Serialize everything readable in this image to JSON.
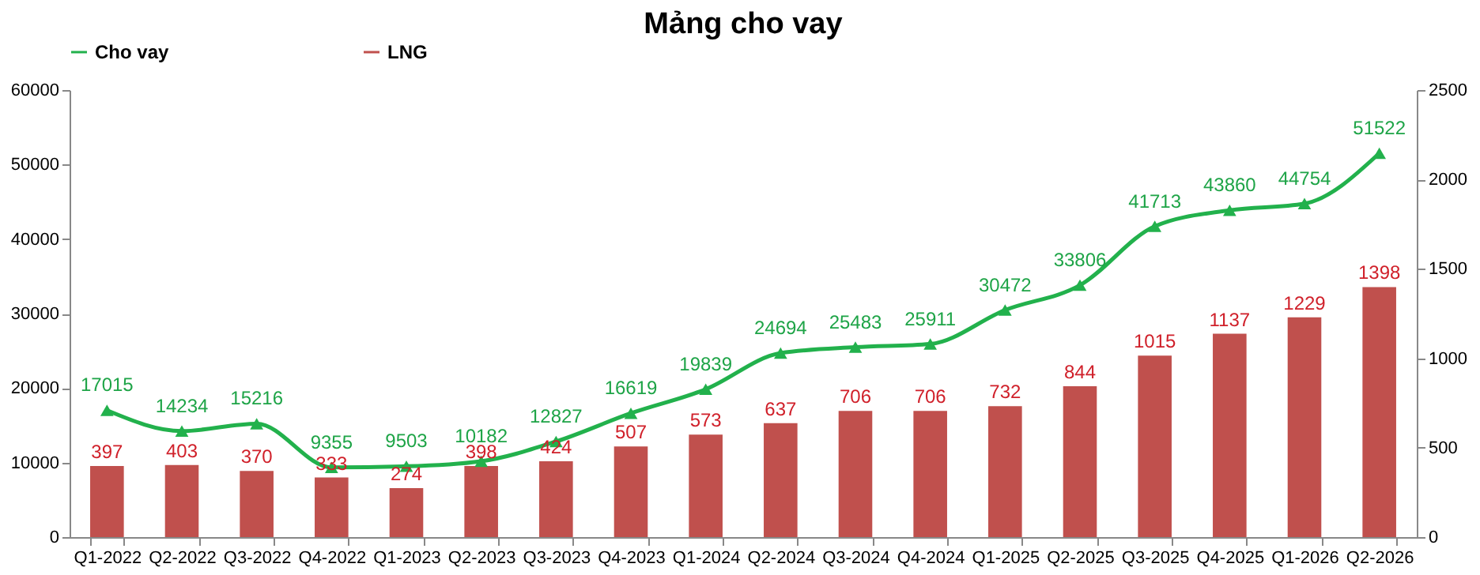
{
  "chart_data": {
    "type": "bar",
    "title": "Mảng cho vay",
    "categories": [
      "Q1-2022",
      "Q2-2022",
      "Q3-2022",
      "Q4-2022",
      "Q1-2023",
      "Q2-2023",
      "Q3-2023",
      "Q4-2023",
      "Q1-2024",
      "Q2-2024",
      "Q3-2024",
      "Q4-2024",
      "Q1-2025",
      "Q2-2025",
      "Q3-2025",
      "Q4-2025",
      "Q1-2026",
      "Q2-2026"
    ],
    "series": [
      {
        "name": "Cho vay",
        "type": "line",
        "color": "#22b14c",
        "values": [
          17015,
          14234,
          15216,
          9355,
          9503,
          10182,
          12827,
          16619,
          19839,
          24694,
          25483,
          25911,
          30472,
          33806,
          41713,
          43860,
          44754,
          51522
        ]
      },
      {
        "name": "LNG",
        "type": "bar",
        "axis": "y2",
        "color": "#c0504d",
        "values": [
          397,
          403,
          370,
          333,
          274,
          398,
          424,
          507,
          573,
          637,
          706,
          706,
          732,
          844,
          1015,
          1137,
          1229,
          1398
        ]
      }
    ],
    "ylim": [
      0,
      60000
    ],
    "yticks": [
      0,
      10000,
      20000,
      30000,
      40000,
      50000,
      60000
    ],
    "y2lim": [
      0,
      2500
    ],
    "y2ticks": [
      0,
      500,
      1000,
      1500,
      2000,
      2500
    ],
    "data_labels": true,
    "legend": "top",
    "marker": "triangle",
    "line_style": "solid",
    "grid": false
  }
}
